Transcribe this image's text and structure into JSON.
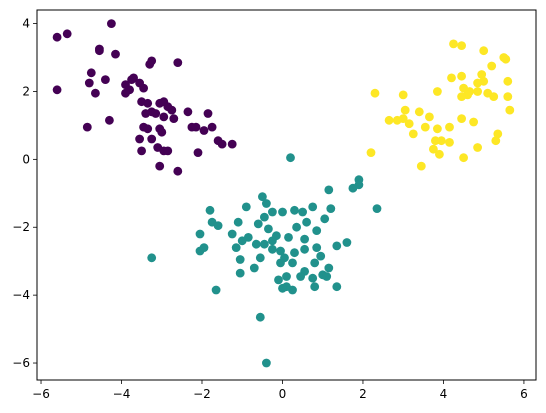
{
  "chart_data": {
    "type": "scatter",
    "title": "",
    "xlabel": "",
    "ylabel": "",
    "xlim": [
      -6.1,
      6.3
    ],
    "ylim": [
      -6.5,
      4.4
    ],
    "xticks": [
      -6,
      -4,
      -2,
      0,
      2,
      4,
      6
    ],
    "yticks": [
      -6,
      -4,
      -2,
      0,
      2,
      4
    ],
    "xtick_labels": [
      "−6",
      "−4",
      "−2",
      "0",
      "2",
      "4",
      "6"
    ],
    "ytick_labels": [
      "−6",
      "−4",
      "−2",
      "0",
      "2",
      "4"
    ],
    "grid": false,
    "series": [
      {
        "color": "#440154",
        "points": [
          [
            -5.6,
            3.6
          ],
          [
            -5.35,
            3.7
          ],
          [
            -4.25,
            4.0
          ],
          [
            -4.55,
            3.25
          ],
          [
            -4.55,
            3.2
          ],
          [
            -4.8,
            2.25
          ],
          [
            -4.75,
            2.55
          ],
          [
            -5.6,
            2.05
          ],
          [
            -4.65,
            1.95
          ],
          [
            -4.4,
            2.35
          ],
          [
            -4.15,
            3.1
          ],
          [
            -3.7,
            2.4
          ],
          [
            -3.3,
            2.8
          ],
          [
            -3.25,
            2.9
          ],
          [
            -3.9,
            2.2
          ],
          [
            -3.8,
            2.05
          ],
          [
            -4.85,
            0.95
          ],
          [
            -4.3,
            1.15
          ],
          [
            -3.75,
            2.35
          ],
          [
            -3.55,
            2.25
          ],
          [
            -3.45,
            2.1
          ],
          [
            -3.5,
            1.7
          ],
          [
            -3.35,
            1.65
          ],
          [
            -3.25,
            1.4
          ],
          [
            -3.05,
            1.65
          ],
          [
            -2.95,
            1.7
          ],
          [
            -2.85,
            1.55
          ],
          [
            -2.75,
            1.45
          ],
          [
            -2.95,
            1.25
          ],
          [
            -3.15,
            1.35
          ],
          [
            -3.4,
            1.35
          ],
          [
            -3.45,
            0.95
          ],
          [
            -3.35,
            0.9
          ],
          [
            -2.7,
            1.2
          ],
          [
            -3.05,
            0.9
          ],
          [
            -3.25,
            0.6
          ],
          [
            -3.55,
            0.6
          ],
          [
            -3.5,
            0.25
          ],
          [
            -3.1,
            0.35
          ],
          [
            -2.95,
            0.25
          ],
          [
            -2.85,
            0.25
          ],
          [
            -3.05,
            -0.2
          ],
          [
            -2.6,
            -0.35
          ],
          [
            -2.35,
            1.4
          ],
          [
            -2.25,
            0.95
          ],
          [
            -1.85,
            1.35
          ],
          [
            -1.75,
            0.95
          ],
          [
            -1.95,
            0.85
          ],
          [
            -1.6,
            0.55
          ],
          [
            -1.5,
            0.45
          ],
          [
            -1.25,
            0.45
          ],
          [
            -2.1,
            0.2
          ],
          [
            -2.15,
            0.95
          ],
          [
            -2.6,
            2.85
          ],
          [
            -3.0,
            0.8
          ],
          [
            -3.9,
            1.95
          ]
        ]
      },
      {
        "color": "#21918c",
        "points": [
          [
            0.2,
            0.05
          ],
          [
            1.9,
            -0.6
          ],
          [
            1.9,
            -0.75
          ],
          [
            1.75,
            -0.85
          ],
          [
            2.35,
            -1.45
          ],
          [
            1.15,
            -0.9
          ],
          [
            -1.8,
            -1.5
          ],
          [
            -1.75,
            -1.85
          ],
          [
            -1.6,
            -1.95
          ],
          [
            -1.1,
            -1.85
          ],
          [
            -0.9,
            -1.4
          ],
          [
            -0.5,
            -1.1
          ],
          [
            -0.4,
            -1.3
          ],
          [
            -0.25,
            -1.55
          ],
          [
            -0.45,
            -1.7
          ],
          [
            -0.6,
            -1.9
          ],
          [
            -0.35,
            -2.05
          ],
          [
            0.0,
            -1.55
          ],
          [
            0.3,
            -1.5
          ],
          [
            0.5,
            -1.55
          ],
          [
            0.75,
            -1.4
          ],
          [
            0.6,
            -1.85
          ],
          [
            0.35,
            -2.0
          ],
          [
            0.15,
            -2.3
          ],
          [
            0.55,
            -2.35
          ],
          [
            -0.15,
            -2.25
          ],
          [
            -0.25,
            -2.4
          ],
          [
            -0.45,
            -2.5
          ],
          [
            -0.65,
            -2.5
          ],
          [
            -0.85,
            -2.3
          ],
          [
            -1.0,
            -2.4
          ],
          [
            -1.25,
            -2.2
          ],
          [
            -1.15,
            -2.6
          ],
          [
            -1.05,
            -2.95
          ],
          [
            -1.05,
            -3.35
          ],
          [
            -0.7,
            -3.2
          ],
          [
            -0.55,
            -2.9
          ],
          [
            -0.25,
            -2.65
          ],
          [
            -0.05,
            -2.7
          ],
          [
            0.05,
            -2.9
          ],
          [
            -0.05,
            -3.05
          ],
          [
            0.3,
            -2.75
          ],
          [
            0.55,
            -2.65
          ],
          [
            0.85,
            -2.6
          ],
          [
            0.95,
            -2.85
          ],
          [
            0.8,
            -3.05
          ],
          [
            0.75,
            -3.5
          ],
          [
            0.55,
            -3.3
          ],
          [
            0.25,
            -3.05
          ],
          [
            0.1,
            -3.45
          ],
          [
            -0.1,
            -3.55
          ],
          [
            0.1,
            -3.75
          ],
          [
            0.25,
            -3.85
          ],
          [
            0.45,
            -3.45
          ],
          [
            1.0,
            -3.4
          ],
          [
            1.15,
            -3.2
          ],
          [
            1.1,
            -3.45
          ],
          [
            1.35,
            -3.75
          ],
          [
            0.8,
            -3.75
          ],
          [
            1.35,
            -2.55
          ],
          [
            1.6,
            -2.45
          ],
          [
            0.85,
            -2.1
          ],
          [
            1.05,
            -1.75
          ],
          [
            1.2,
            -1.45
          ],
          [
            -2.05,
            -2.2
          ],
          [
            -2.05,
            -2.7
          ],
          [
            -1.95,
            -2.6
          ],
          [
            -1.65,
            -3.85
          ],
          [
            -3.25,
            -2.9
          ],
          [
            -0.55,
            -4.65
          ],
          [
            -0.4,
            -6.0
          ],
          [
            0.0,
            -3.8
          ]
        ]
      },
      {
        "color": "#fde725",
        "points": [
          [
            4.25,
            3.4
          ],
          [
            4.45,
            3.35
          ],
          [
            5.0,
            3.2
          ],
          [
            5.5,
            3.0
          ],
          [
            5.55,
            2.95
          ],
          [
            5.2,
            2.75
          ],
          [
            4.95,
            2.5
          ],
          [
            4.45,
            2.45
          ],
          [
            4.2,
            2.4
          ],
          [
            5.6,
            2.3
          ],
          [
            5.0,
            2.3
          ],
          [
            4.85,
            2.25
          ],
          [
            4.5,
            2.1
          ],
          [
            4.65,
            2.0
          ],
          [
            4.85,
            2.0
          ],
          [
            5.1,
            1.95
          ],
          [
            4.6,
            1.9
          ],
          [
            4.45,
            1.85
          ],
          [
            5.25,
            1.85
          ],
          [
            5.6,
            1.85
          ],
          [
            3.85,
            2.0
          ],
          [
            3.0,
            1.9
          ],
          [
            2.3,
            1.95
          ],
          [
            3.05,
            1.45
          ],
          [
            3.4,
            1.4
          ],
          [
            3.0,
            1.2
          ],
          [
            2.85,
            1.15
          ],
          [
            2.65,
            1.15
          ],
          [
            3.15,
            1.05
          ],
          [
            3.65,
            1.25
          ],
          [
            5.65,
            1.45
          ],
          [
            4.45,
            1.2
          ],
          [
            4.75,
            1.1
          ],
          [
            3.55,
            0.95
          ],
          [
            3.85,
            0.9
          ],
          [
            3.25,
            0.75
          ],
          [
            4.15,
            0.95
          ],
          [
            5.35,
            0.75
          ],
          [
            5.3,
            0.55
          ],
          [
            3.8,
            0.55
          ],
          [
            3.95,
            0.55
          ],
          [
            4.15,
            0.5
          ],
          [
            4.85,
            0.35
          ],
          [
            3.75,
            0.3
          ],
          [
            3.9,
            0.15
          ],
          [
            4.5,
            0.05
          ],
          [
            3.45,
            -0.2
          ],
          [
            2.2,
            0.2
          ]
        ]
      }
    ]
  }
}
